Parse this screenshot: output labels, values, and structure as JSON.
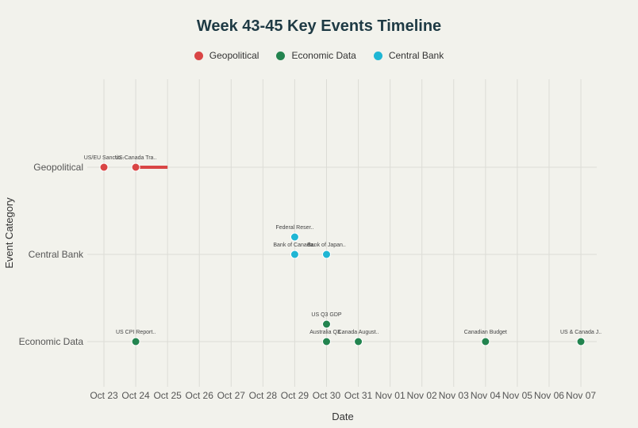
{
  "chart_data": {
    "type": "scatter",
    "title": "Week 43-45 Key Events Timeline",
    "xlabel": "Date",
    "ylabel": "Event Category",
    "x_ticks": [
      "Oct 23",
      "Oct 24",
      "Oct 25",
      "Oct 26",
      "Oct 27",
      "Oct 28",
      "Oct 29",
      "Oct 30",
      "Oct 31",
      "Nov 01",
      "Nov 02",
      "Nov 03",
      "Nov 04",
      "Nov 05",
      "Nov 06",
      "Nov 07"
    ],
    "categories": [
      "Geopolitical",
      "Central Bank",
      "Economic Data"
    ],
    "legend": [
      {
        "name": "Geopolitical",
        "color": "#d94545"
      },
      {
        "name": "Economic Data",
        "color": "#23844f"
      },
      {
        "name": "Central Bank",
        "color": "#1fb6d4"
      }
    ],
    "grid": true,
    "legend_position": "top-center",
    "events": [
      {
        "label": "US/EU Sanctio..",
        "category": "Geopolitical",
        "day": 0,
        "stack": 0
      },
      {
        "label": "US-Canada Tra..",
        "category": "Geopolitical",
        "day": 1,
        "end_day": 2,
        "stack": 0
      },
      {
        "label": "Federal Reser..",
        "category": "Central Bank",
        "day": 6,
        "stack": 1
      },
      {
        "label": "Bank of Canada..",
        "category": "Central Bank",
        "day": 6,
        "stack": 0
      },
      {
        "label": "Bank of Japan..",
        "category": "Central Bank",
        "day": 7,
        "stack": 0
      },
      {
        "label": "US CPI Report..",
        "category": "Economic Data",
        "day": 1,
        "stack": 0
      },
      {
        "label": "US Q3 GDP",
        "category": "Economic Data",
        "day": 7,
        "stack": 1
      },
      {
        "label": "Australia Q3..",
        "category": "Economic Data",
        "day": 7,
        "stack": 0
      },
      {
        "label": "Canada August..",
        "category": "Economic Data",
        "day": 8,
        "stack": 0
      },
      {
        "label": "Canadian Budget",
        "category": "Economic Data",
        "day": 12,
        "stack": 0
      },
      {
        "label": "US & Canada J..",
        "category": "Economic Data",
        "day": 15,
        "stack": 0
      }
    ]
  }
}
